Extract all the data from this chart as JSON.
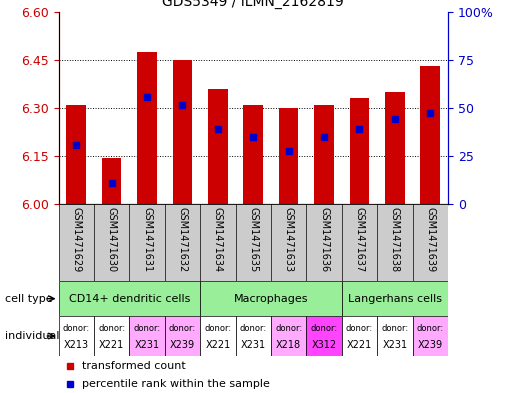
{
  "title": "GDS5349 / ILMN_2162819",
  "samples": [
    "GSM1471629",
    "GSM1471630",
    "GSM1471631",
    "GSM1471632",
    "GSM1471634",
    "GSM1471635",
    "GSM1471633",
    "GSM1471636",
    "GSM1471637",
    "GSM1471638",
    "GSM1471639"
  ],
  "bar_values": [
    6.31,
    6.145,
    6.475,
    6.45,
    6.36,
    6.31,
    6.3,
    6.31,
    6.33,
    6.35,
    6.43
  ],
  "blue_dot_values": [
    6.185,
    6.065,
    6.335,
    6.31,
    6.235,
    6.21,
    6.165,
    6.21,
    6.235,
    6.265,
    6.285
  ],
  "ymin": 6.0,
  "ymax": 6.6,
  "yticks_left": [
    6.0,
    6.15,
    6.3,
    6.45,
    6.6
  ],
  "yticks_right_labels": [
    "0",
    "25",
    "50",
    "75",
    "100%"
  ],
  "yticks_right_pct": [
    0,
    25,
    50,
    75,
    100
  ],
  "bar_color": "#cc0000",
  "dot_color": "#0000cc",
  "bar_width": 0.55,
  "tick_color_left": "#cc0000",
  "tick_color_right": "#0000cc",
  "sample_bg_color": "#cccccc",
  "cell_groups": [
    {
      "label": "CD14+ dendritic cells",
      "start": 0,
      "end": 3,
      "color": "#99ee99"
    },
    {
      "label": "Macrophages",
      "start": 4,
      "end": 7,
      "color": "#99ee99"
    },
    {
      "label": "Langerhans cells",
      "start": 8,
      "end": 10,
      "color": "#99ee99"
    }
  ],
  "ind_colors": [
    "#ffffff",
    "#ffffff",
    "#ffaaff",
    "#ffaaff",
    "#ffffff",
    "#ffffff",
    "#ffaaff",
    "#ff44ff",
    "#ffffff",
    "#ffffff",
    "#ffaaff"
  ],
  "donors": [
    "X213",
    "X221",
    "X231",
    "X239",
    "X221",
    "X231",
    "X218",
    "X312",
    "X221",
    "X231",
    "X239"
  ],
  "sample_fontsize": 7,
  "axis_fontsize": 8,
  "legend_fontsize": 8
}
